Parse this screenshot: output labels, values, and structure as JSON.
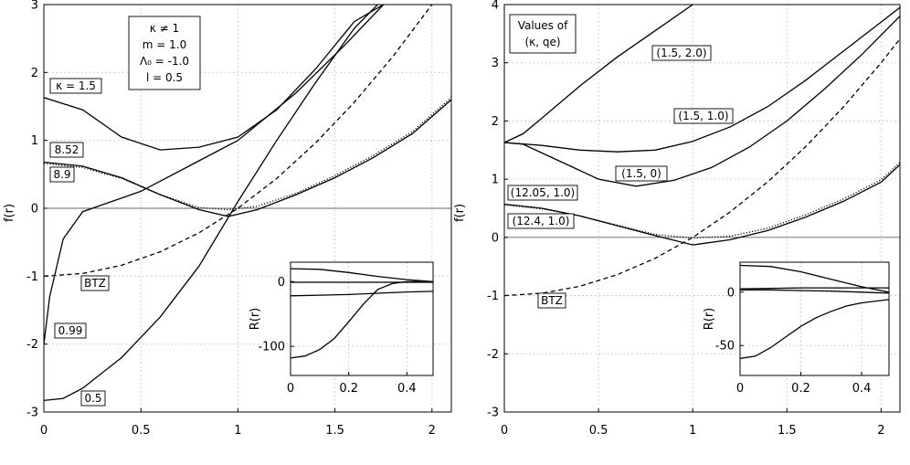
{
  "chart_data": [
    {
      "type": "line",
      "title": "",
      "xlabel": "",
      "ylabel": "f(r)",
      "xlim": [
        0,
        2.1
      ],
      "ylim": [
        -3,
        3
      ],
      "x_ticks": [
        "0",
        "0.5",
        "1",
        "1.5",
        "2"
      ],
      "y_ticks": [
        "-3",
        "-2",
        "-1",
        "0",
        "1",
        "2",
        "3"
      ],
      "grid": true,
      "params_box": [
        "κ ≠ 1",
        "m = 1.0",
        "Λ₀ = -1.0",
        "l = 0.5"
      ],
      "series": [
        {
          "label": "κ = 1.5",
          "style": "solid",
          "x": [
            0,
            0.2,
            0.4,
            0.6,
            0.8,
            1.0,
            1.2,
            1.4,
            1.6,
            1.75
          ],
          "y": [
            1.63,
            1.45,
            1.05,
            0.86,
            0.9,
            1.05,
            1.45,
            2.05,
            2.75,
            3.0
          ]
        },
        {
          "label": "8.52",
          "style": "solid",
          "x": [
            0,
            0.2,
            0.4,
            0.6,
            0.8,
            0.95,
            1.1,
            1.3,
            1.5,
            1.7,
            1.9,
            2.1
          ],
          "y": [
            0.68,
            0.62,
            0.45,
            0.2,
            -0.02,
            -0.12,
            -0.02,
            0.2,
            0.45,
            0.75,
            1.1,
            1.6
          ]
        },
        {
          "label": "8.9",
          "style": "dotted",
          "x": [
            0,
            0.2,
            0.4,
            0.6,
            0.8,
            0.95,
            1.1,
            1.3,
            1.5,
            1.7,
            1.9,
            2.1
          ],
          "y": [
            0.66,
            0.6,
            0.44,
            0.2,
            0.01,
            -0.02,
            0.03,
            0.22,
            0.48,
            0.78,
            1.13,
            1.63
          ]
        },
        {
          "label": "0.99",
          "style": "solid",
          "x": [
            0,
            0.03,
            0.1,
            0.2,
            0.3,
            0.5,
            0.8,
            1.0,
            1.3,
            1.55,
            1.75
          ],
          "y": [
            -2.0,
            -1.3,
            -0.45,
            -0.05,
            0.05,
            0.25,
            0.7,
            1.0,
            1.7,
            2.4,
            3.0
          ]
        },
        {
          "label": "0.5",
          "style": "solid",
          "x": [
            0,
            0.1,
            0.2,
            0.4,
            0.6,
            0.8,
            1.0,
            1.2,
            1.4,
            1.6,
            1.72
          ],
          "y": [
            -2.83,
            -2.8,
            -2.65,
            -2.2,
            -1.6,
            -0.85,
            0.1,
            1.0,
            1.85,
            2.65,
            3.0
          ]
        },
        {
          "label": "BTZ",
          "style": "dashed",
          "x": [
            0,
            0.2,
            0.4,
            0.6,
            0.8,
            1.0,
            1.2,
            1.4,
            1.6,
            1.8,
            2.0,
            2.1
          ],
          "y": [
            -1.0,
            -0.96,
            -0.84,
            -0.64,
            -0.36,
            0.0,
            0.44,
            0.96,
            1.56,
            2.24,
            3.0,
            3.41
          ]
        }
      ],
      "inset": {
        "ylabel": "R(r)",
        "xlim": [
          0,
          0.49
        ],
        "ylim": [
          -145,
          30
        ],
        "x_ticks": [
          "0",
          "0.2",
          "0.4"
        ],
        "y_ticks": [
          "0",
          "-100"
        ],
        "series": [
          {
            "x": [
              0,
              0.1,
              0.2,
              0.3,
              0.4,
              0.49
            ],
            "y": [
              20,
              19,
              14,
              8,
              3,
              0
            ]
          },
          {
            "x": [
              0,
              0.1,
              0.2,
              0.3,
              0.4,
              0.49
            ],
            "y": [
              -1,
              -1,
              -1,
              -1,
              -1,
              -1
            ]
          },
          {
            "x": [
              0,
              0.1,
              0.2,
              0.3,
              0.4,
              0.49
            ],
            "y": [
              -22,
              -21,
              -20,
              -18,
              -16,
              -15
            ]
          },
          {
            "x": [
              0,
              0.05,
              0.1,
              0.15,
              0.2,
              0.25,
              0.3,
              0.35,
              0.4,
              0.49
            ],
            "y": [
              -118,
              -115,
              -105,
              -88,
              -62,
              -35,
              -12,
              -3,
              0,
              0
            ]
          }
        ]
      }
    },
    {
      "type": "line",
      "title": "",
      "xlabel": "",
      "ylabel": "f(r)",
      "xlim": [
        0,
        2.1
      ],
      "ylim": [
        -3,
        4
      ],
      "x_ticks": [
        "0",
        "0.5",
        "1",
        "1.5",
        "2"
      ],
      "y_ticks": [
        "-3",
        "-2",
        "-1",
        "0",
        "1",
        "2",
        "3",
        "4"
      ],
      "grid": true,
      "legend_title": [
        "Values of",
        "(κ, qe)"
      ],
      "series": [
        {
          "label": "(1.5, 2.0)",
          "style": "solid",
          "x": [
            0,
            0.1,
            0.2,
            0.4,
            0.6,
            0.8,
            1.0
          ],
          "y": [
            1.63,
            1.78,
            2.05,
            2.6,
            3.1,
            3.55,
            4.0
          ]
        },
        {
          "label": "(1.5, 1.0)",
          "style": "solid",
          "x": [
            0,
            0.2,
            0.4,
            0.6,
            0.8,
            1.0,
            1.2,
            1.4,
            1.6,
            1.8,
            2.0,
            2.1
          ],
          "y": [
            1.63,
            1.58,
            1.5,
            1.47,
            1.5,
            1.65,
            1.9,
            2.25,
            2.7,
            3.2,
            3.7,
            3.95
          ]
        },
        {
          "label": "(1.5, 0)",
          "style": "solid",
          "x": [
            0,
            0.1,
            0.3,
            0.5,
            0.7,
            0.9,
            1.1,
            1.3,
            1.5,
            1.7,
            1.9,
            2.1
          ],
          "y": [
            1.63,
            1.6,
            1.3,
            1.0,
            0.88,
            0.98,
            1.2,
            1.55,
            2.0,
            2.55,
            3.15,
            3.8
          ]
        },
        {
          "label": "(12.05, 1.0)",
          "style": "solid",
          "x": [
            0,
            0.2,
            0.4,
            0.6,
            0.8,
            1.0,
            1.2,
            1.4,
            1.6,
            1.8,
            2.0,
            2.1
          ],
          "y": [
            0.57,
            0.5,
            0.37,
            0.2,
            0.03,
            -0.13,
            -0.04,
            0.12,
            0.35,
            0.62,
            0.95,
            1.25
          ]
        },
        {
          "label": "(12.4, 1.0)",
          "style": "dotted",
          "x": [
            0,
            0.2,
            0.4,
            0.6,
            0.8,
            1.0,
            1.2,
            1.4,
            1.6,
            1.8,
            2.0,
            2.1
          ],
          "y": [
            0.56,
            0.49,
            0.37,
            0.21,
            0.05,
            -0.01,
            0.02,
            0.16,
            0.39,
            0.66,
            0.99,
            1.29
          ]
        },
        {
          "label": "BTZ",
          "style": "dashed",
          "x": [
            0,
            0.2,
            0.4,
            0.6,
            0.8,
            1.0,
            1.2,
            1.4,
            1.6,
            1.8,
            2.0,
            2.1
          ],
          "y": [
            -1.0,
            -0.96,
            -0.84,
            -0.64,
            -0.36,
            0.0,
            0.44,
            0.96,
            1.56,
            2.24,
            3.0,
            3.41
          ]
        }
      ],
      "inset": {
        "ylabel": "R(r)",
        "xlim": [
          0,
          0.49
        ],
        "ylim": [
          -78,
          28
        ],
        "x_ticks": [
          "0",
          "0.2",
          "0.4"
        ],
        "y_ticks": [
          "0",
          "-50"
        ],
        "series": [
          {
            "x": [
              0,
              0.1,
              0.2,
              0.3,
              0.4,
              0.49
            ],
            "y": [
              25,
              24,
              19,
              12,
              5,
              0
            ]
          },
          {
            "x": [
              0,
              0.1,
              0.2,
              0.3,
              0.4,
              0.49
            ],
            "y": [
              3,
              3.5,
              4,
              4,
              4,
              4
            ]
          },
          {
            "x": [
              0,
              0.1,
              0.2,
              0.3,
              0.4,
              0.49
            ],
            "y": [
              2,
              2,
              1.5,
              1,
              0,
              -1
            ]
          },
          {
            "x": [
              0,
              0.05,
              0.1,
              0.15,
              0.2,
              0.25,
              0.3,
              0.35,
              0.4,
              0.49
            ],
            "y": [
              -62,
              -60,
              -52,
              -42,
              -32,
              -24,
              -18,
              -13,
              -10,
              -7
            ]
          }
        ]
      }
    }
  ]
}
